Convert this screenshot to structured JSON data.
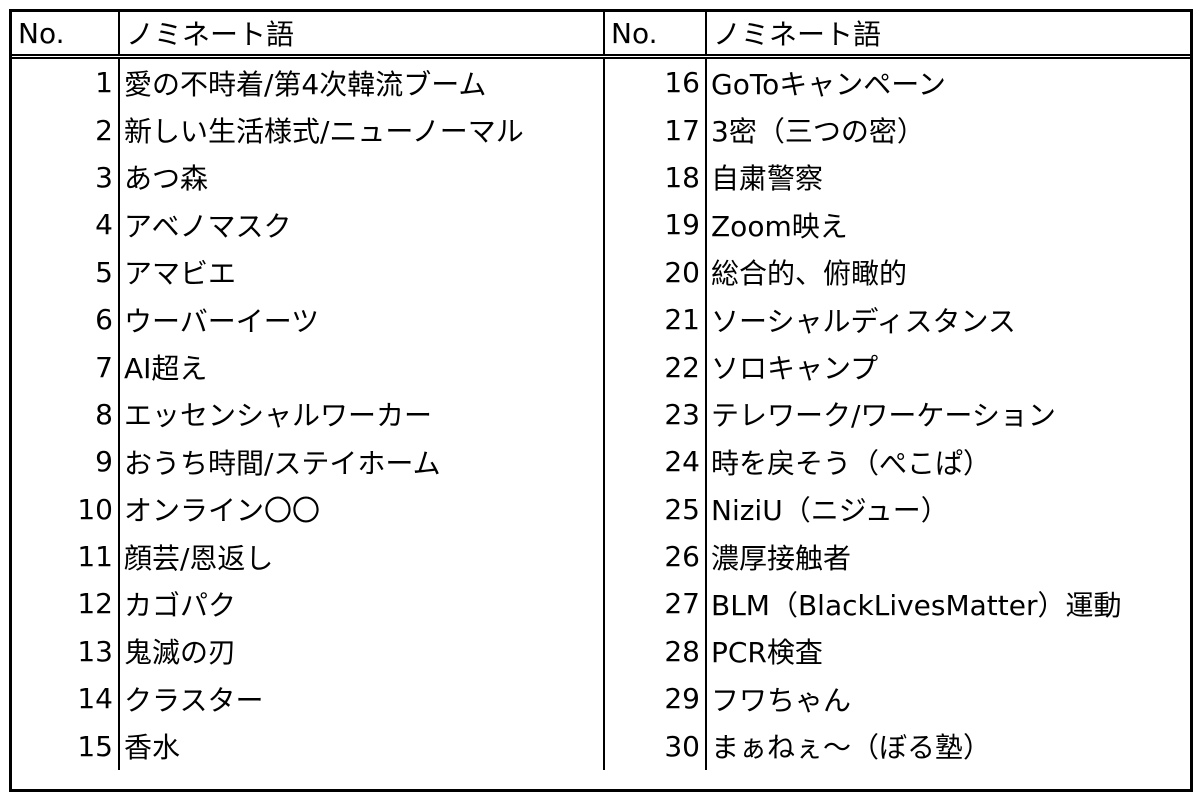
{
  "header": {
    "no_label": "No.",
    "term_label": "ノミネート語"
  },
  "rows": [
    {
      "left_no": "1",
      "left_term": "愛の不時着/第4次韓流ブーム",
      "right_no": "16",
      "right_term": "GoToキャンペーン"
    },
    {
      "left_no": "2",
      "left_term": "新しい生活様式/ニューノーマル",
      "right_no": "17",
      "right_term": "3密（三つの密）"
    },
    {
      "left_no": "3",
      "left_term": "あつ森",
      "right_no": "18",
      "right_term": "自粛警察"
    },
    {
      "left_no": "4",
      "left_term": "アベノマスク",
      "right_no": "19",
      "right_term": "Zoom映え"
    },
    {
      "left_no": "5",
      "left_term": "アマビエ",
      "right_no": "20",
      "right_term": "総合的、俯瞰的"
    },
    {
      "left_no": "6",
      "left_term": "ウーバーイーツ",
      "right_no": "21",
      "right_term": "ソーシャルディスタンス"
    },
    {
      "left_no": "7",
      "left_term": "AI超え",
      "right_no": "22",
      "right_term": "ソロキャンプ"
    },
    {
      "left_no": "8",
      "left_term": "エッセンシャルワーカー",
      "right_no": "23",
      "right_term": "テレワーク/ワーケーション"
    },
    {
      "left_no": "9",
      "left_term": "おうち時間/ステイホーム",
      "right_no": "24",
      "right_term": "時を戻そう（ぺこぱ）"
    },
    {
      "left_no": "10",
      "left_term": "オンライン〇〇",
      "right_no": "25",
      "right_term": "NiziU（ニジュー）"
    },
    {
      "left_no": "11",
      "left_term": "顔芸/恩返し",
      "right_no": "26",
      "right_term": "濃厚接触者"
    },
    {
      "left_no": "12",
      "left_term": "カゴパク",
      "right_no": "27",
      "right_term": "BLM（BlackLivesMatter）運動"
    },
    {
      "left_no": "13",
      "left_term": "鬼滅の刃",
      "right_no": "28",
      "right_term": "PCR検査"
    },
    {
      "left_no": "14",
      "left_term": "クラスター",
      "right_no": "29",
      "right_term": "フワちゃん"
    },
    {
      "left_no": "15",
      "left_term": "香水",
      "right_no": "30",
      "right_term": "まぁねぇ～（ぼる塾）"
    }
  ]
}
